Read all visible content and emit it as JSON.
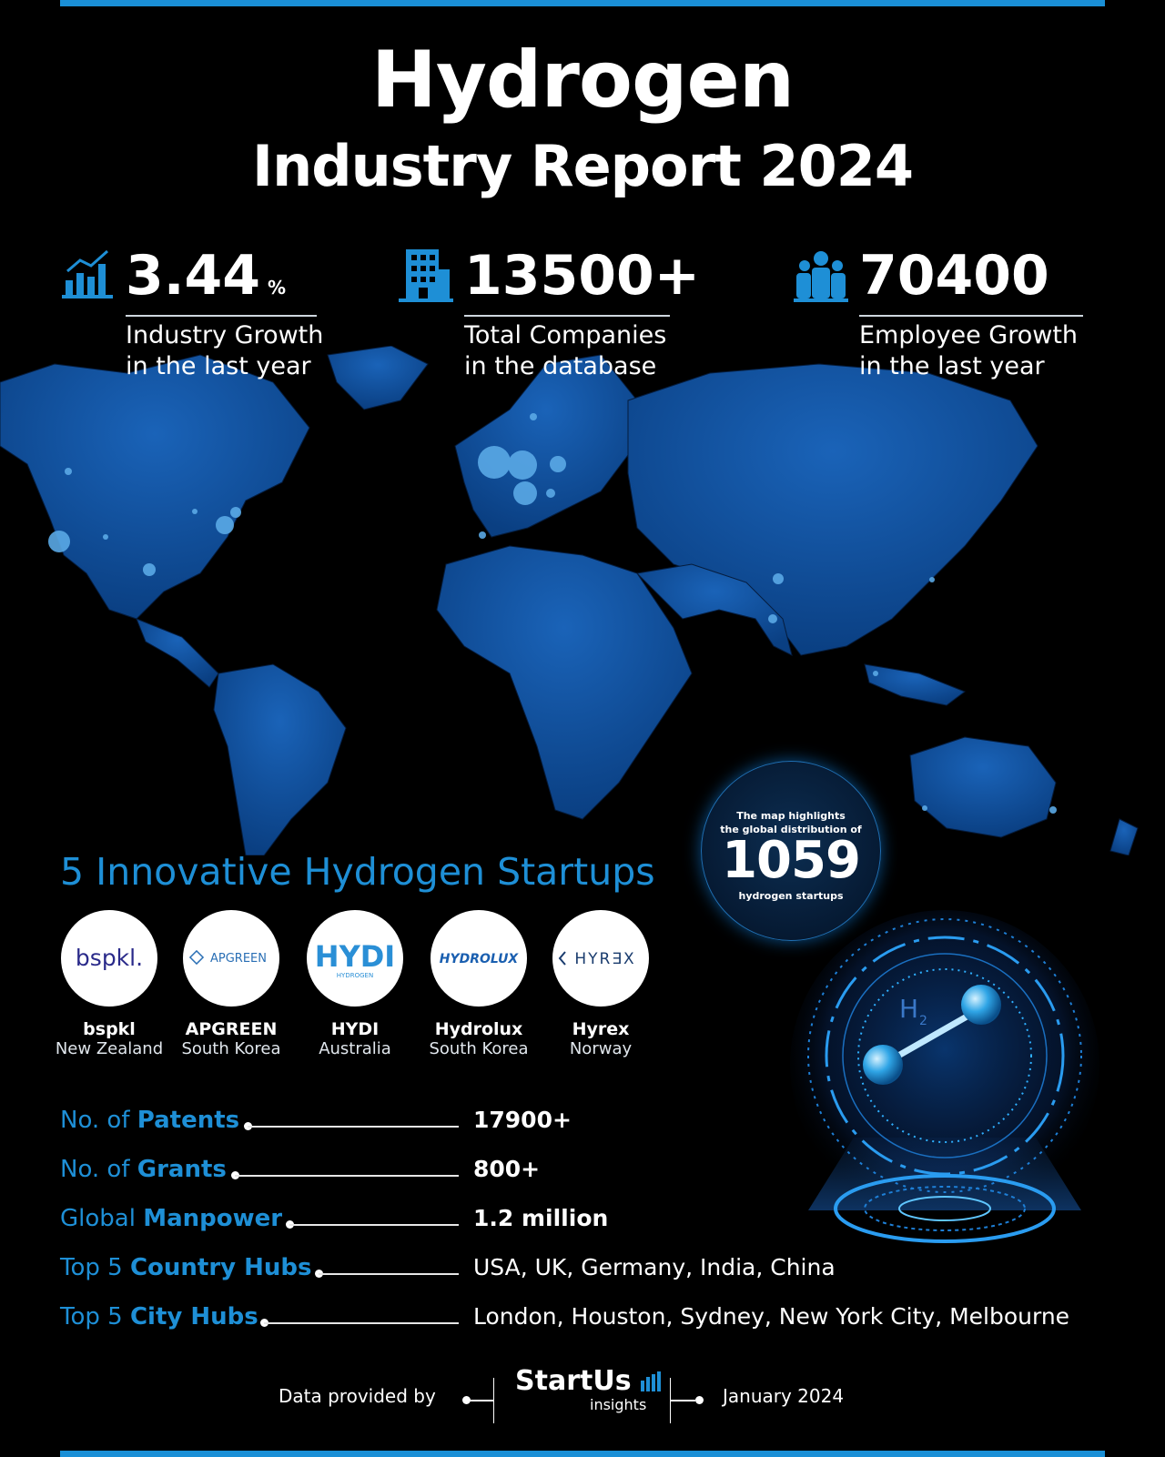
{
  "header": {
    "title_line1": "Hydrogen",
    "title_line2": "Industry Report 2024"
  },
  "stats": [
    {
      "value": "3.44",
      "unit": "%",
      "label_line1": "Industry Growth",
      "label_line2": "in the last year",
      "icon": "growth-chart-icon"
    },
    {
      "value": "13500+",
      "unit": "",
      "label_line1": "Total Companies",
      "label_line2": "in the database",
      "icon": "building-icon"
    },
    {
      "value": "70400",
      "unit": "",
      "label_line1": "Employee Growth",
      "label_line2": "in the last year",
      "icon": "people-icon"
    }
  ],
  "map_badge": {
    "line1": "The map highlights",
    "line2": "the global distribution of",
    "number": "1059",
    "line3": "hydrogen startups"
  },
  "startups_title": "5 Innovative Hydrogen Startups",
  "startups": [
    {
      "logo_text": "bspkl.",
      "name": "bspkl",
      "country": "New Zealand"
    },
    {
      "logo_text": "APGREEN",
      "name": "APGREEN",
      "country": "South Korea"
    },
    {
      "logo_text": "HYDI",
      "logo_sub": "HYDROGEN",
      "name": "HYDI",
      "country": "Australia"
    },
    {
      "logo_text": "HYDROLUX",
      "name": "Hydrolux",
      "country": "South Korea"
    },
    {
      "logo_text": "HYR∃X",
      "name": "Hyrex",
      "country": "Norway"
    }
  ],
  "metrics": [
    {
      "prefix": "No. of ",
      "bold": "Patents",
      "value": "17900+"
    },
    {
      "prefix": "No. of ",
      "bold": "Grants",
      "value": "800+"
    },
    {
      "prefix": "Global ",
      "bold": "Manpower",
      "value": "1.2 million"
    },
    {
      "prefix": "Top 5 ",
      "bold": "Country Hubs",
      "value": "USA, UK, Germany, India, China"
    },
    {
      "prefix": "Top 5 ",
      "bold": "City Hubs",
      "value": "London, Houston, Sydney, New York City, Melbourne"
    }
  ],
  "molecule_label": "H",
  "molecule_sub": "2",
  "footer": {
    "provided_by": "Data provided by",
    "brand": "StartUs",
    "brand_sub": "insights",
    "date": "January 2024"
  },
  "colors": {
    "accent": "#1e8fd6",
    "map": "#0f4f9c",
    "background": "#000000"
  }
}
